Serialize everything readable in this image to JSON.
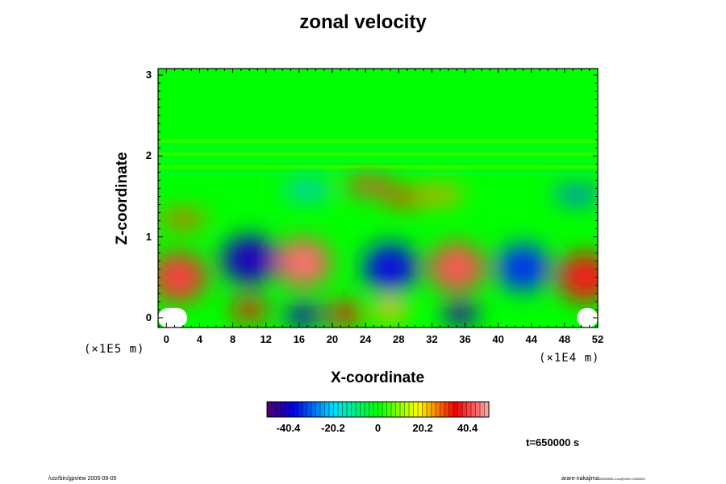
{
  "chart_data": {
    "type": "heatmap",
    "title": "zonal velocity",
    "xlabel": "X-coordinate",
    "ylabel": "Z-coordinate",
    "x_scale_label": "(×1E4 m)",
    "y_scale_label": "(×1E5 m)",
    "x_range": [
      -1,
      52
    ],
    "y_range": [
      -0.12,
      3.08
    ],
    "x_ticks": [
      0,
      4,
      8,
      12,
      16,
      20,
      24,
      28,
      32,
      36,
      40,
      44,
      48,
      52
    ],
    "y_ticks": [
      0,
      1,
      2,
      3
    ],
    "colorbar": {
      "range": [
        -50,
        50
      ],
      "ticks": [
        -40.4,
        -20.2,
        0,
        20.2,
        40.4
      ],
      "tick_labels": [
        "-40.4",
        "-20.2",
        "0",
        "20.2",
        "40.4"
      ]
    },
    "time_label": "t=650000 s",
    "structures": [
      {
        "x": 1.5,
        "z": 0.5,
        "value": 38
      },
      {
        "x": 10,
        "z": 0.72,
        "value": -40
      },
      {
        "x": 16.5,
        "z": 0.68,
        "value": 42
      },
      {
        "x": 27,
        "z": 0.62,
        "value": -36
      },
      {
        "x": 35,
        "z": 0.62,
        "value": 40
      },
      {
        "x": 43,
        "z": 0.62,
        "value": -32
      },
      {
        "x": 50.5,
        "z": 0.5,
        "value": 35
      },
      {
        "x": 10,
        "z": 0.1,
        "value": 35
      },
      {
        "x": 16.5,
        "z": 0.03,
        "value": -40
      },
      {
        "x": 21.5,
        "z": 0.05,
        "value": 34
      },
      {
        "x": 27,
        "z": 0.1,
        "value": 22
      },
      {
        "x": 35.5,
        "z": 0.05,
        "value": -42
      },
      {
        "x": 24.5,
        "z": 1.63,
        "value": 38
      },
      {
        "x": 29,
        "z": 1.48,
        "value": 30
      },
      {
        "x": 33,
        "z": 1.52,
        "value": 24
      },
      {
        "x": 2,
        "z": 1.22,
        "value": 28
      },
      {
        "x": 17,
        "z": 1.58,
        "value": -22
      },
      {
        "x": 49.5,
        "z": 1.52,
        "value": -28
      }
    ],
    "masked_regions": [
      {
        "x": [
          -1,
          2.5
        ],
        "z": [
          -0.12,
          0.12
        ]
      },
      {
        "x": [
          49.5,
          52
        ],
        "z": [
          -0.12,
          0.12
        ]
      }
    ]
  },
  "footer": {
    "left": "/usr/bin/gpview 2005-09-05",
    "right": "arare-nakajima",
    "right_sub": "20050905-1.nc@VelX,t=650000"
  }
}
